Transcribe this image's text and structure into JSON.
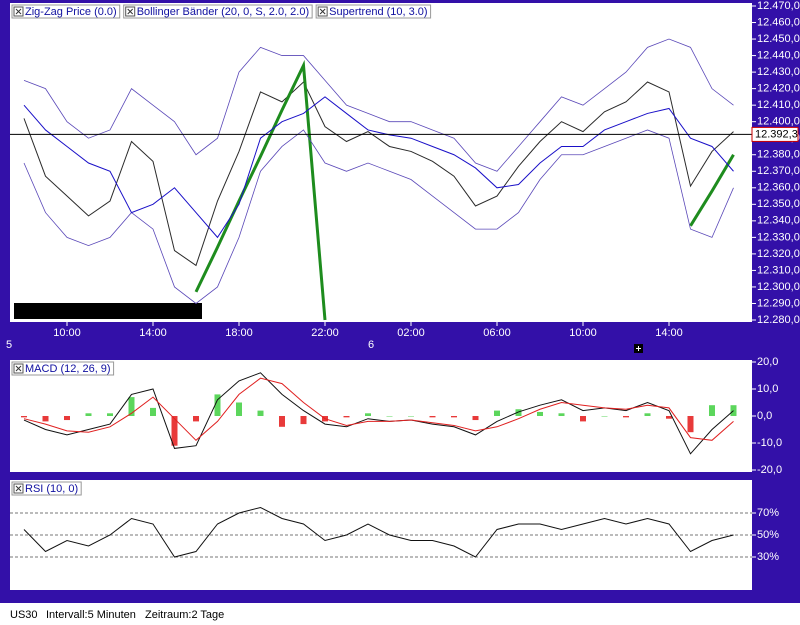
{
  "chart_data": [
    {
      "type": "line",
      "categories": [
        null,
        null,
        "10:00",
        null,
        null,
        null,
        "14:00",
        null,
        null,
        null,
        "18:00",
        null,
        null,
        null,
        "22:00",
        null,
        null,
        null,
        "02:00",
        null,
        null,
        null,
        "06:00",
        null,
        null,
        null,
        "10:00",
        null,
        null,
        null,
        "14:00",
        null,
        null,
        null
      ],
      "series": [
        {
          "color": "#2a2a2a",
          "values": [
            12402,
            12367,
            12355,
            12343,
            12352,
            12388,
            12376,
            12322,
            12313,
            12352,
            12382,
            12418,
            12412,
            12424,
            12397,
            12388,
            12394,
            12385,
            12382,
            12376,
            12367,
            12349,
            12355,
            12373,
            12388,
            12400,
            12394,
            12406,
            12412,
            12424,
            12418,
            12361,
            12382,
            12394
          ]
        },
        {
          "name": "Zig-Zag Price (0.0)",
          "color": "#1e8c1e",
          "values": [
            null,
            null,
            null,
            null,
            null,
            null,
            null,
            null,
            12297,
            12324,
            12352,
            12379,
            12407,
            12434,
            12280,
            null,
            null,
            null,
            null,
            null,
            null,
            null,
            null,
            null,
            null,
            null,
            null,
            null,
            null,
            null,
            null,
            12337,
            12358,
            12380
          ]
        },
        {
          "name": "Bollinger Bänder (20, 0, S, 2.0, 2.0)",
          "color": "#5a48b8",
          "upper": [
            12425,
            12420,
            12400,
            12390,
            12395,
            12420,
            12410,
            12400,
            12380,
            12390,
            12430,
            12445,
            12440,
            12440,
            12425,
            12410,
            12405,
            12400,
            12400,
            12395,
            12390,
            12375,
            12370,
            12385,
            12400,
            12415,
            12410,
            12420,
            12430,
            12445,
            12450,
            12445,
            12420,
            12410
          ],
          "lower": [
            12375,
            12345,
            12330,
            12325,
            12330,
            12345,
            12335,
            12300,
            12290,
            12300,
            12330,
            12370,
            12385,
            12395,
            12375,
            12370,
            12375,
            12370,
            12365,
            12355,
            12345,
            12335,
            12335,
            12345,
            12365,
            12380,
            12380,
            12385,
            12390,
            12395,
            12390,
            12335,
            12330,
            12360
          ]
        },
        {
          "name": "Supertrend (10, 3.0)",
          "color": "#1a10c8",
          "values": [
            12410,
            12395,
            12385,
            12375,
            12370,
            12345,
            12350,
            12360,
            12345,
            12330,
            12350,
            12390,
            12400,
            12405,
            12415,
            12405,
            12395,
            12392,
            12390,
            12385,
            12380,
            12372,
            12360,
            12362,
            12375,
            12385,
            12385,
            12395,
            12400,
            12405,
            12408,
            12390,
            12385,
            12370
          ]
        }
      ],
      "ylim": [
        12280,
        12470
      ],
      "yticks": [
        {
          "value": 12280,
          "label": "12.280,0"
        },
        {
          "value": 12290,
          "label": "12.290,0"
        },
        {
          "value": 12300,
          "label": "12.300,0"
        },
        {
          "value": 12310,
          "label": "12.310,0"
        },
        {
          "value": 12320,
          "label": "12.320,0"
        },
        {
          "value": 12330,
          "label": "12.330,0"
        },
        {
          "value": 12340,
          "label": "12.340,0"
        },
        {
          "value": 12350,
          "label": "12.350,0"
        },
        {
          "value": 12360,
          "label": "12.360,0"
        },
        {
          "value": 12370,
          "label": "12.370,0"
        },
        {
          "value": 12380,
          "label": "12.380,0"
        },
        {
          "value": 12390,
          "label": "12.390,0"
        },
        {
          "value": 12400,
          "label": "12.400,0"
        },
        {
          "value": 12410,
          "label": "12.410,0"
        },
        {
          "value": 12420,
          "label": "12.420,0"
        },
        {
          "value": 12430,
          "label": "12.430,0"
        },
        {
          "value": 12440,
          "label": "12.440,0"
        },
        {
          "value": 12450,
          "label": "12.450,0"
        },
        {
          "value": 12460,
          "label": "12.460,0"
        },
        {
          "value": 12470,
          "label": "12.470,0"
        }
      ],
      "last": {
        "value": 12392.3,
        "label": "12.392,3"
      },
      "days": [
        "5",
        "6"
      ],
      "grid": false
    },
    {
      "type": "macd",
      "title": "MACD (12, 26, 9)",
      "series": [
        {
          "color": "#111111",
          "values": [
            -1.5,
            -5,
            -7,
            -5,
            -3,
            8,
            10,
            -12,
            -11,
            6,
            13,
            16,
            8,
            2,
            -3,
            -4,
            -1,
            -2,
            -1.5,
            -3,
            -4,
            -7,
            -2,
            1.5,
            4,
            6,
            2,
            3,
            2,
            5,
            2,
            -14,
            -5,
            2
          ]
        },
        {
          "color": "#e02020",
          "values": [
            -1,
            -3,
            -5.5,
            -6,
            -4,
            1,
            7,
            -1,
            -9,
            -2,
            8,
            14,
            12,
            5,
            -1,
            -3.5,
            -2,
            -2,
            -1.5,
            -2.5,
            -3.5,
            -5.5,
            -4,
            -1,
            2.5,
            5,
            4,
            3,
            2.5,
            4,
            3,
            -8,
            -9,
            -2
          ]
        }
      ],
      "histogram": [
        -0.5,
        -2,
        -1.5,
        1,
        1,
        7,
        3,
        -11,
        -2,
        8,
        5,
        2,
        -4,
        -3,
        -2,
        -0.5,
        1,
        0,
        0,
        -0.5,
        -0.5,
        -1.5,
        2,
        2.5,
        1.5,
        1,
        -2,
        0,
        -0.5,
        1,
        -1,
        -6,
        4,
        4
      ],
      "ylim": [
        -20,
        20
      ],
      "yticks": [
        {
          "value": -20,
          "label": "-20,0"
        },
        {
          "value": -10,
          "label": "-10,0"
        },
        {
          "value": 0,
          "label": "0,0"
        },
        {
          "value": 10,
          "label": "10,0"
        },
        {
          "value": 20,
          "label": "20,0"
        }
      ],
      "grid": false
    },
    {
      "type": "rsi",
      "title": "RSI (10, 0)",
      "series": [
        {
          "color": "#111111",
          "values": [
            55,
            35,
            45,
            40,
            50,
            65,
            60,
            30,
            35,
            60,
            70,
            75,
            65,
            60,
            45,
            50,
            60,
            50,
            45,
            45,
            40,
            30,
            55,
            60,
            60,
            55,
            60,
            65,
            60,
            65,
            60,
            35,
            45,
            50
          ]
        }
      ],
      "ylim": [
        0,
        100
      ],
      "yticks": [
        {
          "value": 30,
          "label": "30%"
        },
        {
          "value": 50,
          "label": "50%"
        },
        {
          "value": 70,
          "label": "70%"
        }
      ],
      "grid": true
    }
  ],
  "footer": {
    "symbol": "US30",
    "interval": "Intervall:5 Minuten",
    "range": "Zeitraum:2 Tage"
  }
}
